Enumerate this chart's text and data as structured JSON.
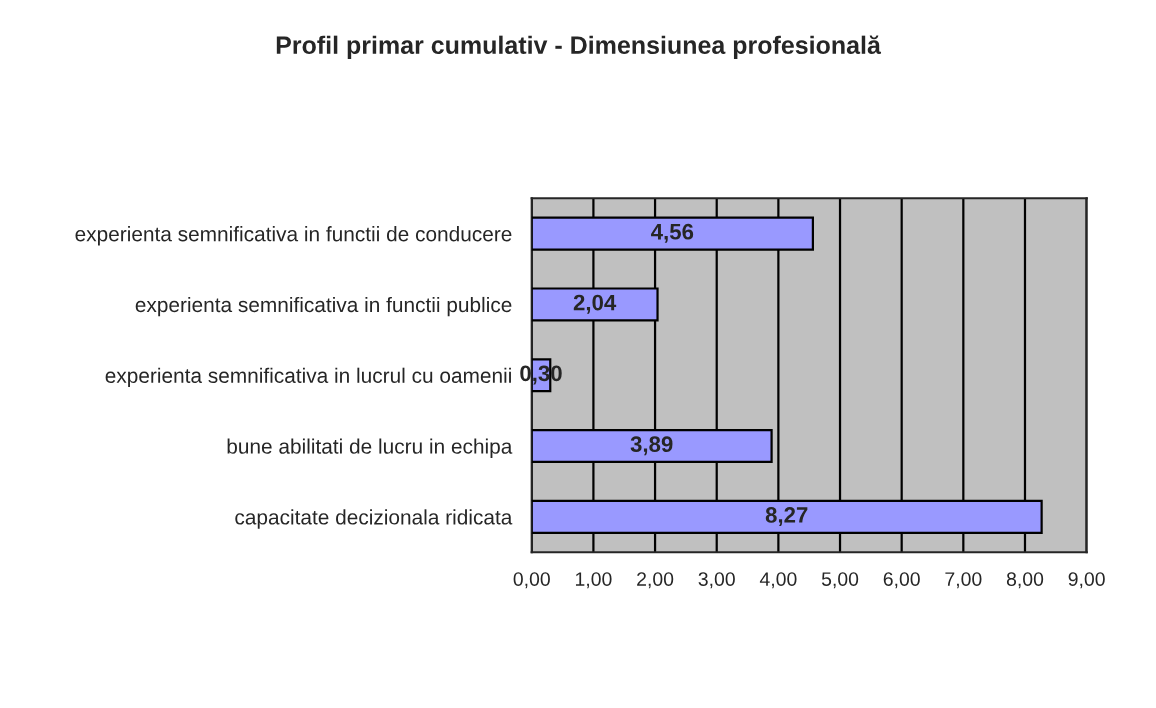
{
  "chart_data": {
    "type": "bar",
    "orientation": "horizontal",
    "title": "Profil primar cumulativ - Dimensiunea profesională",
    "categories": [
      "experienta semnificativa in functii de conducere",
      "experienta semnificativa in functii publice",
      "experienta semnificativa in lucrul cu oamenii",
      "bune abilitati de lucru in echipa",
      "capacitate decizionala ridicata"
    ],
    "values": [
      4.56,
      2.04,
      0.3,
      3.89,
      8.27
    ],
    "value_labels": [
      "4,56",
      "2,04",
      "0,30",
      "3,89",
      "8,27"
    ],
    "color": "#9999ff",
    "xlim": [
      0,
      9
    ],
    "xticks": [
      {
        "value": 0,
        "label": "0,00"
      },
      {
        "value": 1,
        "label": "1,00"
      },
      {
        "value": 2,
        "label": "2,00"
      },
      {
        "value": 3,
        "label": "3,00"
      },
      {
        "value": 4,
        "label": "4,00"
      },
      {
        "value": 5,
        "label": "5,00"
      },
      {
        "value": 6,
        "label": "6,00"
      },
      {
        "value": 7,
        "label": "7,00"
      },
      {
        "value": 8,
        "label": "8,00"
      },
      {
        "value": 9,
        "label": "9,00"
      }
    ],
    "grid": "x"
  }
}
